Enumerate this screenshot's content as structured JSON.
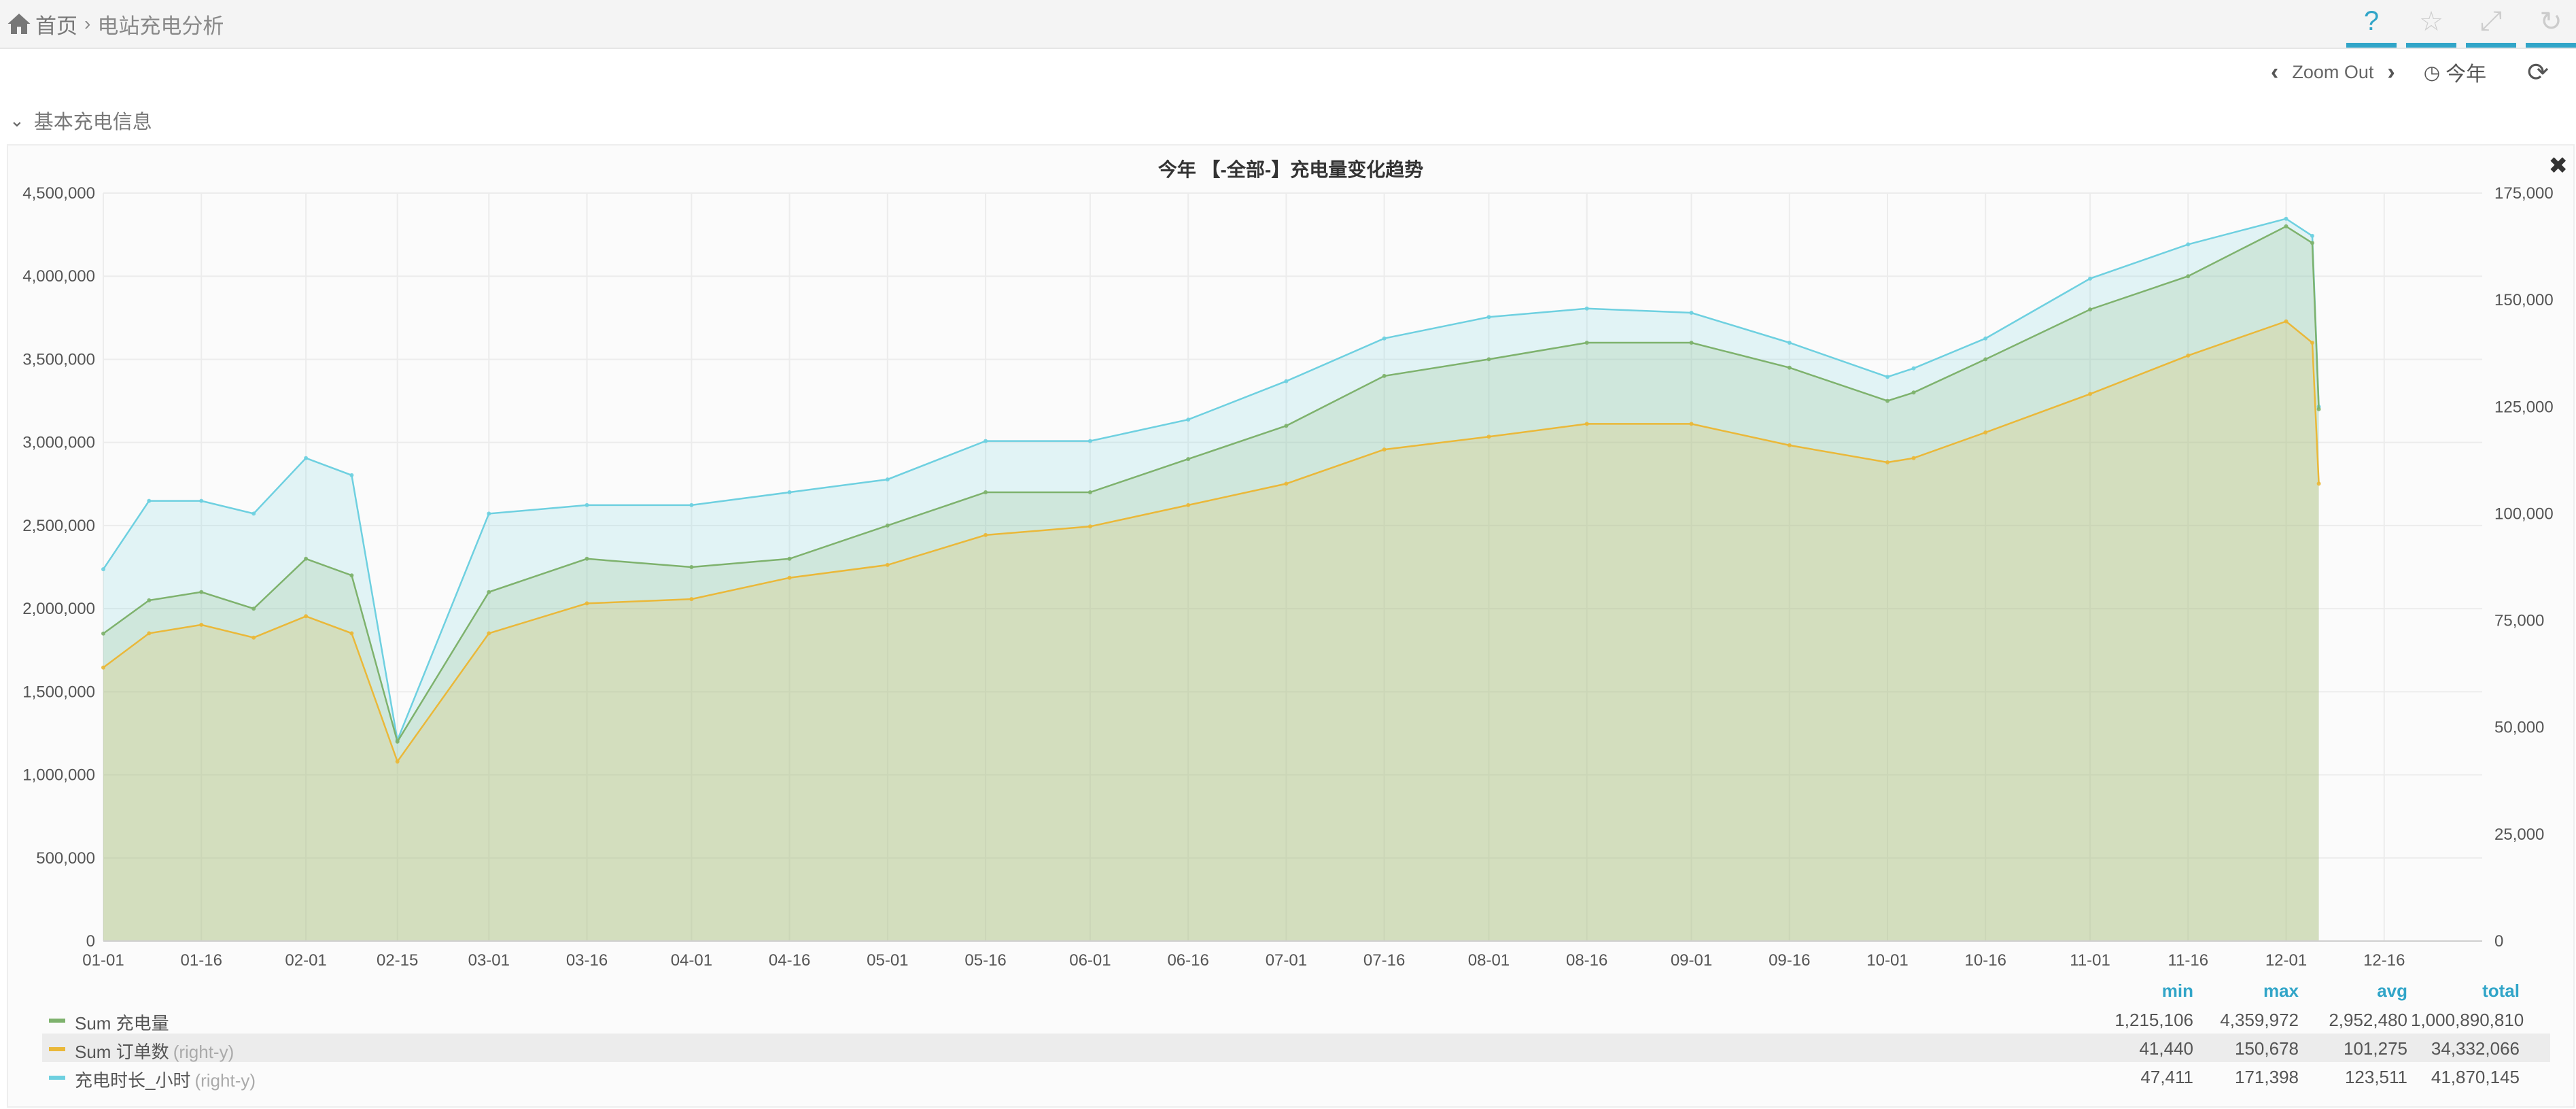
{
  "breadcrumb": {
    "home": "首页",
    "separator": "›",
    "current": "电站充电分析"
  },
  "top_actions": [
    {
      "name": "help-icon",
      "glyph": "?"
    },
    {
      "name": "star-icon",
      "glyph": "☆"
    },
    {
      "name": "expand-icon",
      "glyph": "⤢"
    },
    {
      "name": "refresh-icon",
      "glyph": "↻"
    }
  ],
  "time_picker": {
    "zoom_out": "Zoom Out",
    "range": "今年"
  },
  "row": {
    "title": "基本充电信息"
  },
  "panel": {
    "title": "今年 【-全部-】充电量变化趋势"
  },
  "chart_data": {
    "type": "area",
    "title": "今年 【-全部-】充电量变化趋势",
    "xlabel": "",
    "ylabel": "",
    "y2label": "",
    "x_ticks": [
      "01-01",
      "01-16",
      "02-01",
      "02-15",
      "03-01",
      "03-16",
      "04-01",
      "04-16",
      "05-01",
      "05-16",
      "06-01",
      "06-16",
      "07-01",
      "07-16",
      "08-01",
      "08-16",
      "09-01",
      "09-16",
      "10-01",
      "10-16",
      "11-01",
      "11-16",
      "12-01",
      "12-16"
    ],
    "ylim": [
      0,
      4500000
    ],
    "y_ticks": [
      "0",
      "500,000",
      "1,000,000",
      "1,500,000",
      "2,000,000",
      "2,500,000",
      "3,000,000",
      "3,500,000",
      "4,000,000",
      "4,500,000"
    ],
    "y2lim": [
      0,
      175000
    ],
    "y2_ticks": [
      "0",
      "25,000",
      "50,000",
      "75,000",
      "100,000",
      "125,000",
      "150,000",
      "175,000"
    ],
    "grid": true,
    "legend_position": "bottom-left",
    "x_range": [
      "01-01",
      "12-31"
    ],
    "series": [
      {
        "name": "Sum 充电量",
        "axis": "left",
        "color": "#7eb26d",
        "x": [
          "01-01",
          "01-08",
          "01-16",
          "01-24",
          "02-01",
          "02-08",
          "02-15",
          "03-01",
          "03-16",
          "04-01",
          "04-16",
          "05-01",
          "05-16",
          "06-01",
          "06-16",
          "07-01",
          "07-16",
          "08-01",
          "08-16",
          "09-01",
          "09-16",
          "10-01",
          "10-05",
          "10-16",
          "11-01",
          "11-16",
          "12-01",
          "12-05",
          "12-06"
        ],
        "values": [
          1850000,
          2050000,
          2100000,
          2000000,
          2300000,
          2200000,
          1200000,
          2100000,
          2300000,
          2250000,
          2300000,
          2500000,
          2700000,
          2700000,
          2900000,
          3100000,
          3400000,
          3500000,
          3600000,
          3600000,
          3450000,
          3250000,
          3300000,
          3500000,
          3800000,
          4000000,
          4300000,
          4200000,
          3200000
        ]
      },
      {
        "name": "Sum 订单数",
        "axis": "right",
        "color": "#eab839",
        "x": [
          "01-01",
          "01-08",
          "01-16",
          "01-24",
          "02-01",
          "02-08",
          "02-15",
          "03-01",
          "03-16",
          "04-01",
          "04-16",
          "05-01",
          "05-16",
          "06-01",
          "06-16",
          "07-01",
          "07-16",
          "08-01",
          "08-16",
          "09-01",
          "09-16",
          "10-01",
          "10-05",
          "10-16",
          "11-01",
          "11-16",
          "12-01",
          "12-05",
          "12-06"
        ],
        "values": [
          64000,
          72000,
          74000,
          71000,
          76000,
          72000,
          42000,
          72000,
          79000,
          80000,
          85000,
          88000,
          95000,
          97000,
          102000,
          107000,
          115000,
          118000,
          121000,
          121000,
          116000,
          112000,
          113000,
          119000,
          128000,
          137000,
          145000,
          140000,
          107000
        ]
      },
      {
        "name": "充电时长_小时",
        "axis": "right",
        "color": "#6ed0e0",
        "x": [
          "01-01",
          "01-08",
          "01-16",
          "01-24",
          "02-01",
          "02-08",
          "02-15",
          "03-01",
          "03-16",
          "04-01",
          "04-16",
          "05-01",
          "05-16",
          "06-01",
          "06-16",
          "07-01",
          "07-16",
          "08-01",
          "08-16",
          "09-01",
          "09-16",
          "10-01",
          "10-05",
          "10-16",
          "11-01",
          "11-16",
          "12-01",
          "12-05",
          "12-06"
        ],
        "values": [
          87000,
          103000,
          103000,
          100000,
          113000,
          109000,
          47000,
          100000,
          102000,
          102000,
          105000,
          108000,
          117000,
          117000,
          122000,
          131000,
          141000,
          146000,
          148000,
          147000,
          140000,
          132000,
          134000,
          141000,
          155000,
          163000,
          169000,
          165000,
          125000
        ]
      }
    ]
  },
  "legend": {
    "columns": [
      "min",
      "max",
      "avg",
      "total"
    ],
    "rows": [
      {
        "name": "Sum 充电量",
        "axis_note": "",
        "color": "#7eb26d",
        "min": "1,215,106",
        "max": "4,359,972",
        "avg": "2,952,480",
        "total": "1,000,890,810"
      },
      {
        "name": "Sum 订单数",
        "axis_note": "(right-y)",
        "color": "#eab839",
        "min": "41,440",
        "max": "150,678",
        "avg": "101,275",
        "total": "34,332,066"
      },
      {
        "name": "充电时长_小时",
        "axis_note": "(right-y)",
        "color": "#6ed0e0",
        "min": "47,411",
        "max": "171,398",
        "avg": "123,511",
        "total": "41,870,145"
      }
    ]
  }
}
